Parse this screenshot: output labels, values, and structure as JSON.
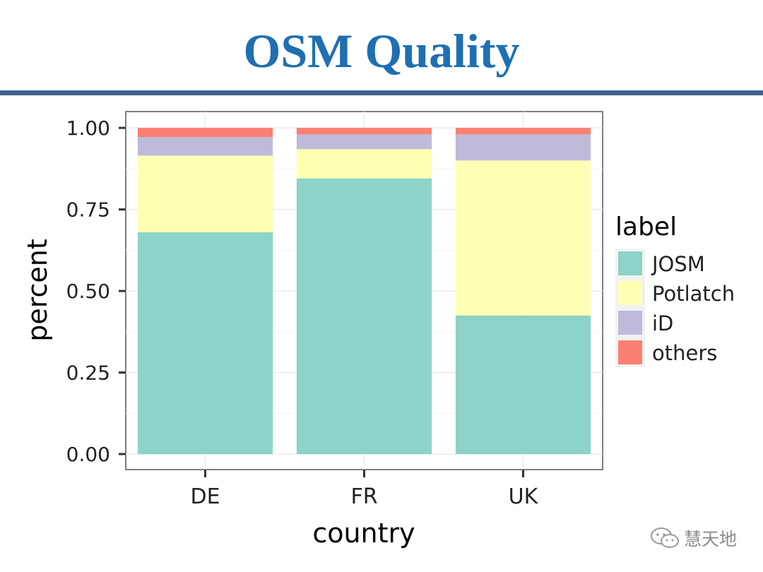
{
  "slide": {
    "title": "OSM Quality",
    "watermark_text": "慧天地",
    "title_color": "#1f6fb2",
    "rule_color": "#3e6490"
  },
  "chart_data": {
    "type": "bar",
    "stacked": true,
    "categories": [
      "DE",
      "FR",
      "UK"
    ],
    "series": [
      {
        "name": "JOSM",
        "color": "#8dd3c7",
        "values": [
          0.68,
          0.845,
          0.425
        ]
      },
      {
        "name": "Potlatch",
        "color": "#ffffb3",
        "values": [
          0.235,
          0.09,
          0.475
        ]
      },
      {
        "name": "iD",
        "color": "#bebada",
        "values": [
          0.057,
          0.045,
          0.08
        ]
      },
      {
        "name": "others",
        "color": "#fb8072",
        "values": [
          0.028,
          0.02,
          0.02
        ]
      }
    ],
    "xlabel": "country",
    "ylabel": "percent",
    "ylim": [
      0,
      1.05
    ],
    "yticks": [
      "0.00",
      "0.25",
      "0.50",
      "0.75",
      "1.00"
    ],
    "ytick_values": [
      0,
      0.25,
      0.5,
      0.75,
      1.0
    ],
    "legend_title": "label",
    "legend_position": "right",
    "grid": true
  }
}
